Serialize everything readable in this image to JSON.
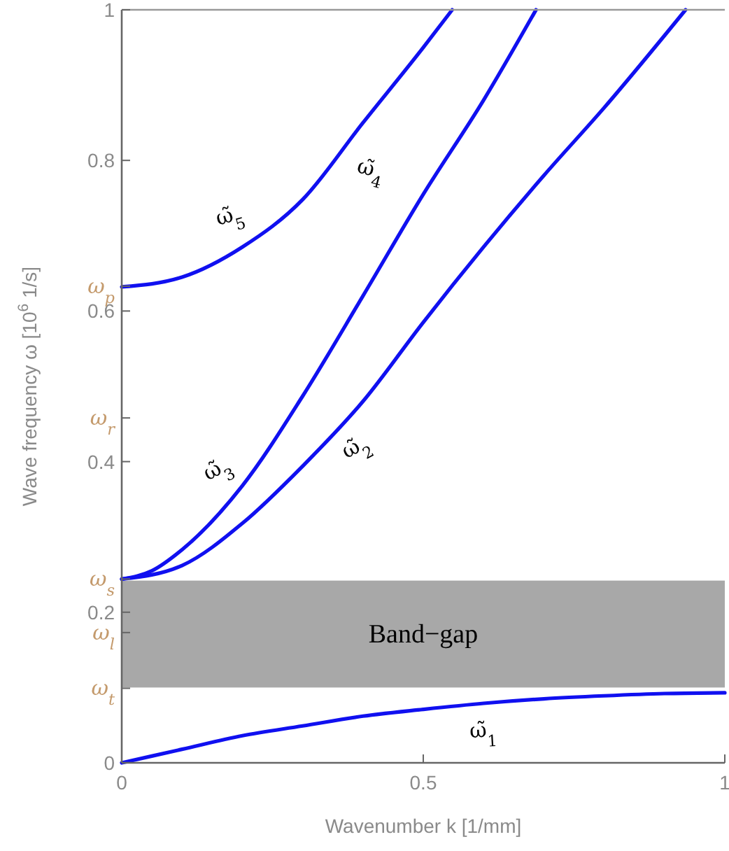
{
  "chart_data": {
    "type": "line",
    "xlabel": "Wavenumber k [1/mm]",
    "ylabel": "Wave frequency ω [10$^{6}$ 1/s]",
    "xlim": [
      0,
      1
    ],
    "xticks": [
      0,
      0.5,
      1
    ],
    "ylim": [
      0,
      1
    ],
    "yticks": [
      0,
      0.2,
      0.4,
      0.6,
      0.8,
      1,
      {
        "value": 0.633,
        "label": "ω$_{p}$"
      },
      {
        "value": 0.458,
        "label": "ω$_{r}$"
      },
      {
        "value": 0.244,
        "label": "ω$_{s}$"
      },
      {
        "value": 0.173,
        "label": "ω$_{l}$"
      },
      {
        "value": 0.099,
        "label": "ω$_{t}$"
      }
    ],
    "grid": false,
    "line_style": "solid",
    "marker": "none",
    "bands": [
      {
        "axis": "y",
        "from": 0.1,
        "to": 0.242,
        "label": "Band−gap",
        "color": "#a8a8a8"
      }
    ],
    "annotations": [
      "ω̃$_{4}$"
    ],
    "series": [
      {
        "name": "ω̃$_{1}$",
        "color": "#1010f0",
        "x": [
          0,
          0.1,
          0.2,
          0.3,
          0.4,
          0.5,
          0.6,
          0.7,
          0.8,
          0.9,
          1
        ],
        "values": [
          0,
          0.018,
          0.036,
          0.049,
          0.062,
          0.071,
          0.079,
          0.085,
          0.089,
          0.092,
          0.093
        ]
      },
      {
        "name": "ω̃$_{2}$",
        "color": "#1010f0",
        "x": [
          0,
          0.1,
          0.2,
          0.3,
          0.4,
          0.5,
          0.6,
          0.7,
          0.8,
          0.935
        ],
        "values": [
          0.244,
          0.262,
          0.318,
          0.394,
          0.48,
          0.585,
          0.685,
          0.78,
          0.87,
          1
        ]
      },
      {
        "name": "ω̃$_{3}$",
        "color": "#1010f0",
        "x": [
          0,
          0.05,
          0.1,
          0.2,
          0.3,
          0.4,
          0.5,
          0.6,
          0.687
        ],
        "values": [
          0.244,
          0.255,
          0.283,
          0.368,
          0.487,
          0.62,
          0.755,
          0.88,
          1
        ]
      },
      {
        "name": "ω̃$_{5}$",
        "color": "#1010f0",
        "x": [
          0,
          0.1,
          0.2,
          0.3,
          0.4,
          0.5,
          0.548
        ],
        "values": [
          0.632,
          0.645,
          0.685,
          0.748,
          0.85,
          0.95,
          1
        ]
      }
    ]
  }
}
